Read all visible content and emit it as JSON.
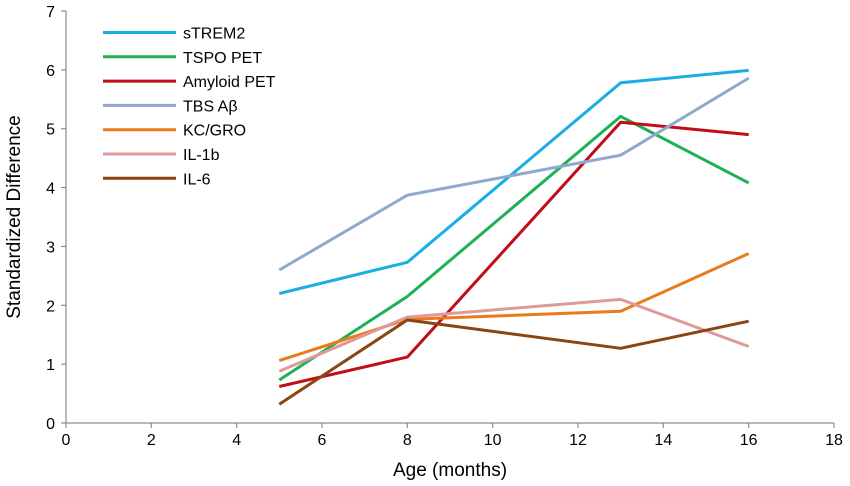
{
  "chart_data": {
    "type": "line",
    "title": "",
    "xlabel": "Age (months)",
    "ylabel": "Standardized Difference",
    "xlim": [
      0,
      18
    ],
    "ylim": [
      0,
      7
    ],
    "xticks": [
      0,
      2,
      4,
      6,
      8,
      10,
      12,
      14,
      16,
      18
    ],
    "yticks": [
      0,
      1,
      2,
      3,
      4,
      5,
      6,
      7
    ],
    "grid": false,
    "legend_position": "top-left",
    "x": [
      5,
      8,
      13,
      16
    ],
    "series": [
      {
        "name": "sTREM2",
        "color": "#1aaee5",
        "values": [
          2.2,
          2.73,
          5.78,
          5.99
        ]
      },
      {
        "name": "TSPO PET",
        "color": "#1db155",
        "values": [
          0.73,
          2.15,
          5.21,
          4.08
        ]
      },
      {
        "name": "Amyloid PET",
        "color": "#c00d18",
        "values": [
          0.62,
          1.12,
          5.11,
          4.9
        ]
      },
      {
        "name": "TBS Aβ",
        "color": "#8fa8cc",
        "values": [
          2.6,
          3.87,
          4.55,
          5.86
        ]
      },
      {
        "name": "KC/GRO",
        "color": "#ec7a1c",
        "values": [
          1.06,
          1.76,
          1.9,
          2.88
        ]
      },
      {
        "name": "IL-1b",
        "color": "#de9a9a",
        "values": [
          0.88,
          1.8,
          2.1,
          1.3
        ]
      },
      {
        "name": "IL-6",
        "color": "#8a4512",
        "values": [
          0.32,
          1.75,
          1.27,
          1.73
        ]
      }
    ]
  }
}
